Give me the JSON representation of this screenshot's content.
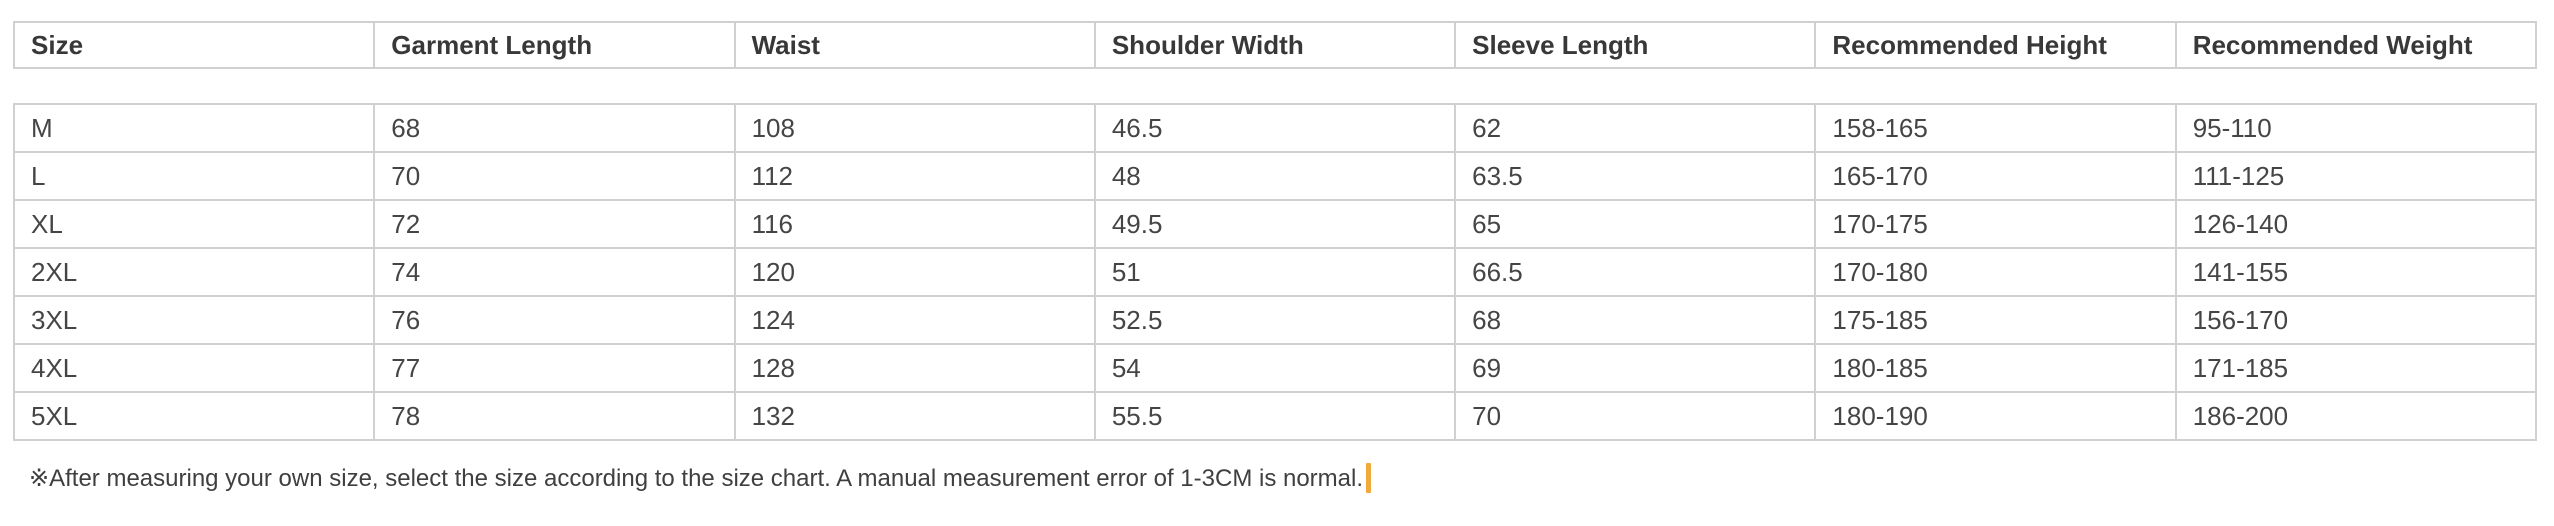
{
  "colors": {
    "border": "#d0d0d0",
    "header_text": "#383838",
    "cell_text": "#454545",
    "note_text": "#3f3f3f",
    "caret": "#f2a93c",
    "background": "#ffffff"
  },
  "table": {
    "columns": [
      "Size",
      "Garment Length",
      "Waist",
      "Shoulder Width",
      "Sleeve Length",
      "Recommended Height",
      "Recommended Weight"
    ],
    "rows": [
      [
        "M",
        "68",
        "108",
        "46.5",
        "62",
        "158-165",
        "95-110"
      ],
      [
        "L",
        "70",
        "112",
        "48",
        "63.5",
        "165-170",
        "111-125"
      ],
      [
        "XL",
        "72",
        "116",
        "49.5",
        "65",
        "170-175",
        "126-140"
      ],
      [
        "2XL",
        "74",
        "120",
        "51",
        "66.5",
        "170-180",
        "141-155"
      ],
      [
        "3XL",
        "76",
        "124",
        "52.5",
        "68",
        "175-185",
        "156-170"
      ],
      [
        "4XL",
        "77",
        "128",
        "54",
        "69",
        "180-185",
        "171-185"
      ],
      [
        "5XL",
        "78",
        "132",
        "55.5",
        "70",
        "180-190",
        "186-200"
      ]
    ]
  },
  "note": {
    "text": "※After measuring your own size, select the size according to the size chart. A manual measurement error of 1-3CM is normal."
  }
}
